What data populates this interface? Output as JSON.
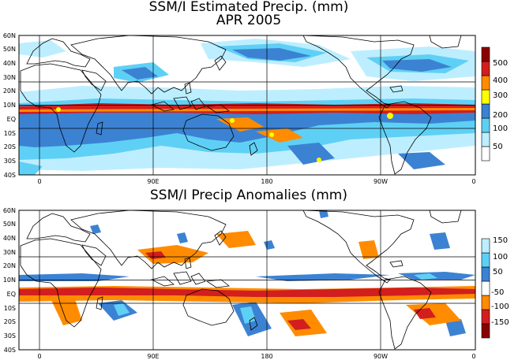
{
  "top_panel": {
    "title_line1": "SSM/I Estimated Precip. (mm)",
    "title_line2": "APR 2005",
    "colorbar": {
      "labels": [
        "50",
        "100",
        "200",
        "300",
        "400",
        "500"
      ],
      "colors": [
        "#ffffff",
        "#bdeeff",
        "#5fd0f5",
        "#3c82d2",
        "#ffff00",
        "#ff8c00",
        "#d21e1e",
        "#8b0000"
      ]
    }
  },
  "bottom_panel": {
    "title": "SSM/I Precip Anomalies (mm)",
    "colorbar": {
      "labels": [
        "-150",
        "-100",
        "-50",
        "50",
        "100",
        "150"
      ],
      "colors": [
        "#8b0000",
        "#d21e1e",
        "#ff8c00",
        "#ffffff",
        "#3c82d2",
        "#5fd0f5",
        "#bdeeff"
      ]
    }
  },
  "axes": {
    "lat_labels": [
      "60N",
      "50N",
      "40N",
      "30N",
      "20N",
      "10N",
      "EQ",
      "10S",
      "20S",
      "30S",
      "40S"
    ],
    "lon_labels": [
      "0",
      "90E",
      "180",
      "90W",
      "0"
    ]
  },
  "colors": {
    "land_outline": "#000000",
    "rain_blue": "#3c82d2",
    "rain_cyan": "#5fd0f5",
    "rain_light": "#bdeeff",
    "rain_yellow": "#ffff00",
    "rain_orange": "#ff8c00",
    "rain_red": "#d21e1e"
  }
}
